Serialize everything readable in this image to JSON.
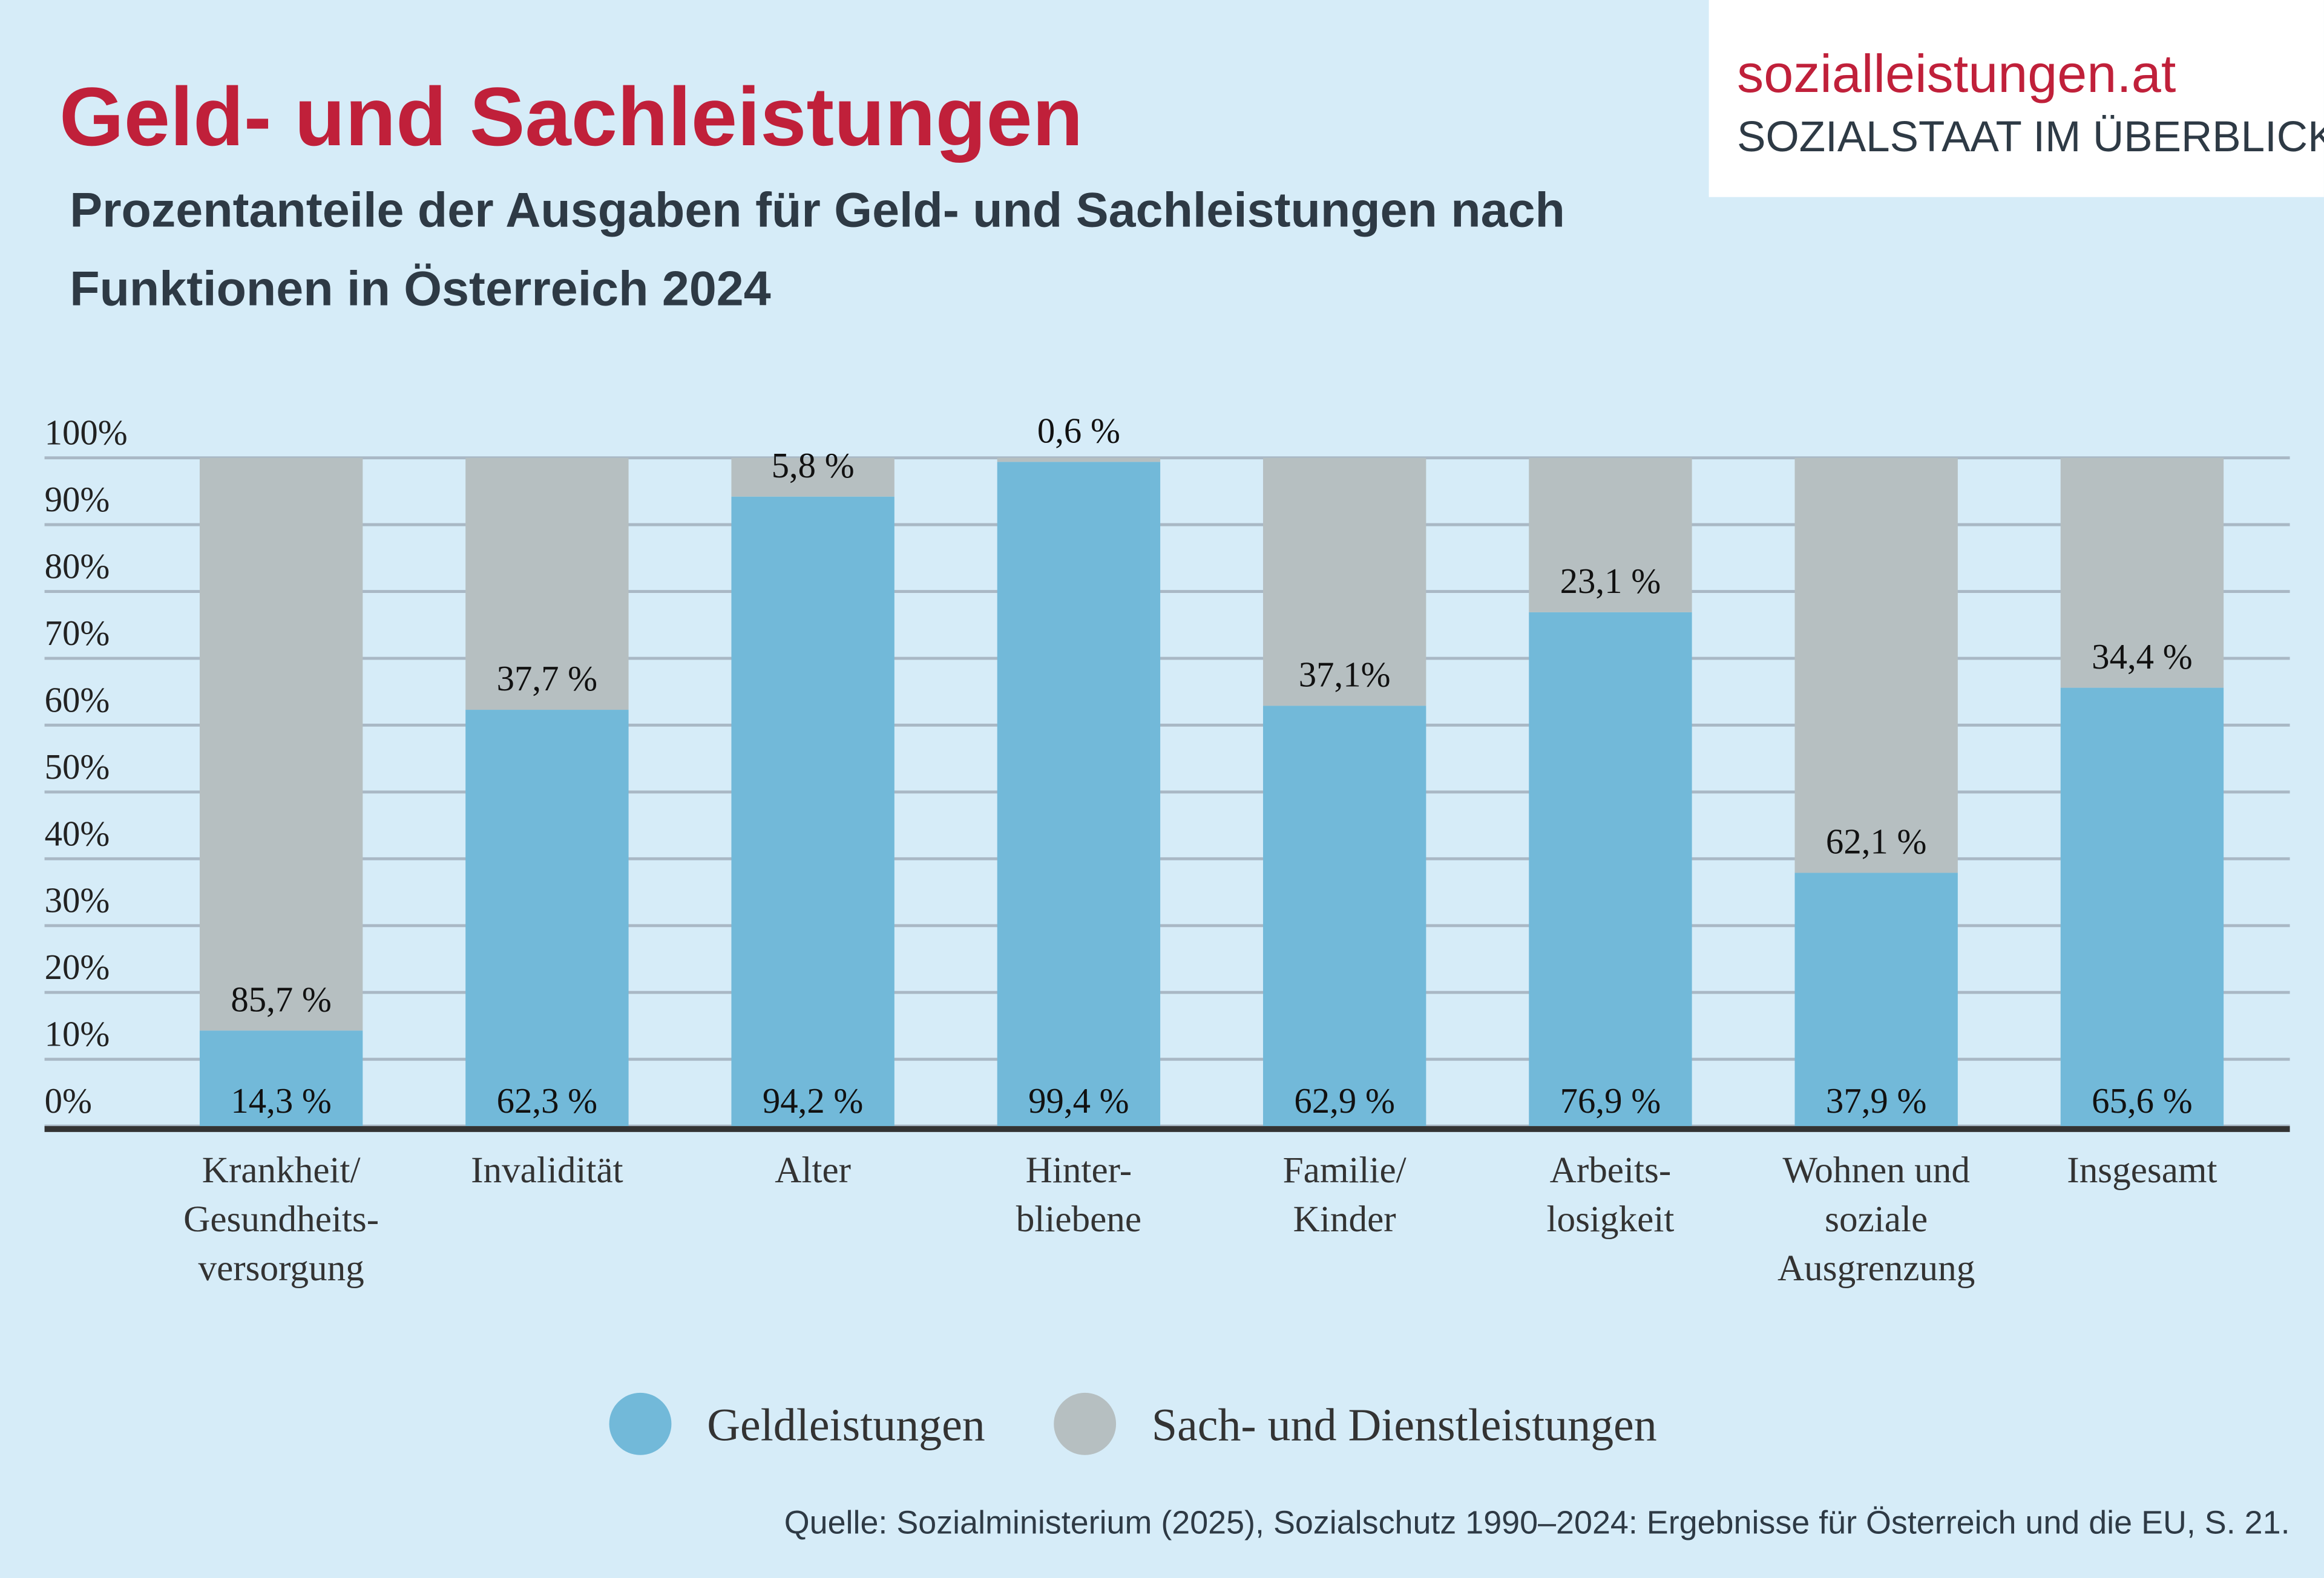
{
  "logo": {
    "name": "sozialleistungen.at",
    "tagline": "SOZIALSTAAT IM ÜBERBLICK"
  },
  "chart_data": {
    "type": "stacked_bar",
    "title": "Geld- und Sachleistungen",
    "subtitle": [
      "Prozentanteile der Ausgaben für Geld- und Sachleistungen nach",
      "Funktionen in Österreich 2024"
    ],
    "categories": [
      [
        "Krankheit/",
        "Gesundheits-",
        "versorgung"
      ],
      [
        "Invalidität"
      ],
      [
        "Alter"
      ],
      [
        "Hinter-",
        "bliebene"
      ],
      [
        "Familie/",
        "Kinder"
      ],
      [
        "Arbeits-",
        "losigkeit"
      ],
      [
        "Wohnen und",
        "soziale",
        "Ausgrenzung"
      ],
      [
        "Insgesamt"
      ]
    ],
    "series": [
      {
        "name": "Geldleistungen",
        "color": "#72b9d9",
        "values": [
          14.3,
          62.3,
          94.2,
          99.4,
          62.9,
          76.9,
          37.9,
          65.6
        ],
        "value_labels": [
          "14,3 %",
          "62,3 %",
          "94,2 %",
          "99,4 %",
          "62,9 %",
          "76,9 %",
          "37,9 %",
          "65,6 %"
        ]
      },
      {
        "name": "Sach- und Dienstleistungen",
        "color": "#b6bfc1",
        "values": [
          85.7,
          37.7,
          5.8,
          0.6,
          37.1,
          23.1,
          62.1,
          34.4
        ],
        "value_labels": [
          "85,7 %",
          "37,7 %",
          "5,8 %",
          "0,6 %",
          "37,1%",
          "23,1 %",
          "62,1 %",
          "34,4 %"
        ]
      }
    ],
    "ylim": [
      0,
      100
    ],
    "yticks": [
      {
        "value": 0,
        "label": "0%"
      },
      {
        "value": 10,
        "label": "10%"
      },
      {
        "value": 20,
        "label": "20%"
      },
      {
        "value": 30,
        "label": "30%"
      },
      {
        "value": 40,
        "label": "40%"
      },
      {
        "value": 50,
        "label": "50%"
      },
      {
        "value": 60,
        "label": "60%"
      },
      {
        "value": 70,
        "label": "70%"
      },
      {
        "value": 80,
        "label": "80%"
      },
      {
        "value": 90,
        "label": "90%"
      },
      {
        "value": 100,
        "label": "100%"
      }
    ],
    "grid": true,
    "source": "Quelle: Sozialministerium (2025), Sozialschutz 1990–2024: Ergebnisse für Österreich und die EU, S. 21."
  }
}
